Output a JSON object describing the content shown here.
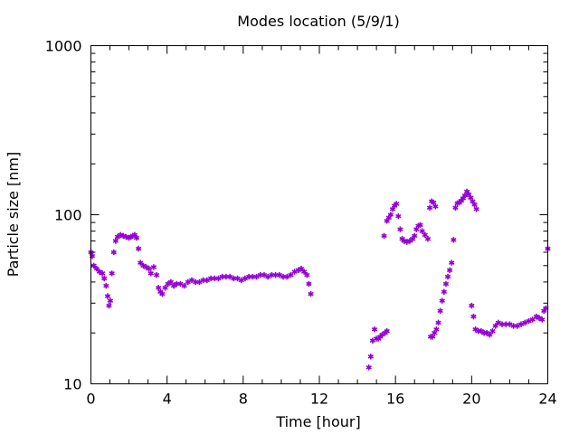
{
  "chart_data": {
    "type": "scatter",
    "title": "Modes location (5/9/1)",
    "xlabel": "Time [hour]",
    "ylabel": "Particle size [nm]",
    "xlim": [
      0,
      24
    ],
    "ylim": [
      10,
      1000
    ],
    "yscale": "log",
    "grid": false,
    "marker": "star",
    "xticks": [
      0,
      4,
      8,
      12,
      16,
      20,
      24
    ],
    "xtick_labels": [
      "0",
      "4",
      "8",
      "12",
      "16",
      "20",
      "24"
    ],
    "yticks": [
      10,
      100,
      1000
    ],
    "ytick_labels": [
      "10",
      "100",
      "1000"
    ],
    "color": "#9400d3",
    "series": [
      {
        "points": [
          [
            0.0,
            60
          ],
          [
            0.07,
            57
          ],
          [
            0.15,
            50
          ],
          [
            0.3,
            48
          ],
          [
            0.45,
            46
          ],
          [
            0.6,
            45
          ],
          [
            0.7,
            42
          ],
          [
            0.8,
            38
          ],
          [
            0.88,
            33
          ],
          [
            0.95,
            29
          ],
          [
            1.02,
            31
          ],
          [
            1.1,
            45
          ],
          [
            1.2,
            60
          ],
          [
            1.3,
            70
          ],
          [
            1.4,
            74
          ],
          [
            1.55,
            76
          ],
          [
            1.7,
            75
          ],
          [
            1.85,
            74
          ],
          [
            2.0,
            73
          ],
          [
            2.1,
            74
          ],
          [
            2.2,
            75
          ],
          [
            2.3,
            76
          ],
          [
            2.4,
            73
          ],
          [
            2.5,
            63
          ],
          [
            2.6,
            52
          ],
          [
            2.75,
            50
          ],
          [
            2.9,
            49
          ],
          [
            3.05,
            48
          ],
          [
            3.15,
            45
          ],
          [
            3.3,
            49
          ],
          [
            3.45,
            44
          ],
          [
            3.55,
            37
          ],
          [
            3.65,
            35
          ],
          [
            3.75,
            34
          ],
          [
            3.9,
            37
          ],
          [
            4.05,
            39
          ],
          [
            4.2,
            40
          ],
          [
            4.35,
            38
          ],
          [
            4.5,
            39
          ],
          [
            4.7,
            39
          ],
          [
            4.9,
            38
          ],
          [
            5.1,
            40
          ],
          [
            5.3,
            41
          ],
          [
            5.5,
            40
          ],
          [
            5.7,
            40
          ],
          [
            5.9,
            41
          ],
          [
            6.1,
            41
          ],
          [
            6.3,
            42
          ],
          [
            6.5,
            42
          ],
          [
            6.7,
            42
          ],
          [
            6.9,
            43
          ],
          [
            7.1,
            43
          ],
          [
            7.3,
            43
          ],
          [
            7.5,
            42
          ],
          [
            7.7,
            42
          ],
          [
            7.9,
            41
          ],
          [
            8.1,
            42
          ],
          [
            8.3,
            43
          ],
          [
            8.5,
            43
          ],
          [
            8.7,
            43
          ],
          [
            8.9,
            44
          ],
          [
            9.1,
            44
          ],
          [
            9.3,
            43
          ],
          [
            9.5,
            44
          ],
          [
            9.7,
            44
          ],
          [
            9.9,
            44
          ],
          [
            10.1,
            43
          ],
          [
            10.3,
            43
          ],
          [
            10.5,
            44
          ],
          [
            10.7,
            46
          ],
          [
            10.9,
            47
          ],
          [
            11.05,
            48
          ],
          [
            11.2,
            46
          ],
          [
            11.35,
            44
          ],
          [
            11.45,
            39
          ],
          [
            11.55,
            34
          ],
          [
            14.6,
            12.5
          ],
          [
            14.7,
            14.5
          ],
          [
            14.8,
            18
          ],
          [
            14.9,
            21
          ],
          [
            15.0,
            18.5
          ],
          [
            15.1,
            18.5
          ],
          [
            15.2,
            19
          ],
          [
            15.3,
            19.5
          ],
          [
            15.45,
            20
          ],
          [
            15.55,
            20.5
          ],
          [
            15.4,
            75
          ],
          [
            15.55,
            92
          ],
          [
            15.65,
            96
          ],
          [
            15.75,
            100
          ],
          [
            15.85,
            108
          ],
          [
            15.95,
            113
          ],
          [
            16.05,
            116
          ],
          [
            16.15,
            98
          ],
          [
            16.25,
            82
          ],
          [
            16.35,
            72
          ],
          [
            16.45,
            70
          ],
          [
            16.6,
            69
          ],
          [
            16.75,
            70
          ],
          [
            16.9,
            72
          ],
          [
            17.0,
            75
          ],
          [
            17.1,
            82
          ],
          [
            17.2,
            86
          ],
          [
            17.3,
            87
          ],
          [
            17.4,
            80
          ],
          [
            17.55,
            76
          ],
          [
            17.7,
            72
          ],
          [
            17.8,
            110
          ],
          [
            17.9,
            120
          ],
          [
            18.0,
            118
          ],
          [
            18.1,
            112
          ],
          [
            17.85,
            19
          ],
          [
            17.95,
            19
          ],
          [
            18.05,
            20
          ],
          [
            18.15,
            21
          ],
          [
            18.25,
            23
          ],
          [
            18.35,
            27
          ],
          [
            18.45,
            31
          ],
          [
            18.55,
            35
          ],
          [
            18.65,
            39
          ],
          [
            18.75,
            43
          ],
          [
            18.85,
            47
          ],
          [
            18.95,
            52
          ],
          [
            19.05,
            71
          ],
          [
            19.15,
            110
          ],
          [
            19.25,
            117
          ],
          [
            19.35,
            118
          ],
          [
            19.45,
            121
          ],
          [
            19.55,
            125
          ],
          [
            19.65,
            130
          ],
          [
            19.75,
            137
          ],
          [
            19.85,
            132
          ],
          [
            19.95,
            126
          ],
          [
            20.05,
            120
          ],
          [
            20.15,
            115
          ],
          [
            20.25,
            108
          ],
          [
            20.0,
            29
          ],
          [
            20.1,
            25
          ],
          [
            20.2,
            21
          ],
          [
            20.35,
            20.5
          ],
          [
            20.5,
            20.5
          ],
          [
            20.65,
            20
          ],
          [
            20.8,
            20
          ],
          [
            20.95,
            19.5
          ],
          [
            21.1,
            20.5
          ],
          [
            21.25,
            22
          ],
          [
            21.4,
            23
          ],
          [
            21.6,
            22.5
          ],
          [
            21.8,
            22.5
          ],
          [
            22.0,
            22.5
          ],
          [
            22.2,
            22
          ],
          [
            22.4,
            22
          ],
          [
            22.6,
            22.5
          ],
          [
            22.8,
            23
          ],
          [
            23.0,
            23.5
          ],
          [
            23.2,
            24
          ],
          [
            23.4,
            25
          ],
          [
            23.55,
            24.5
          ],
          [
            23.7,
            24
          ],
          [
            23.8,
            27
          ],
          [
            23.9,
            28
          ],
          [
            24.0,
            63
          ]
        ]
      }
    ]
  }
}
